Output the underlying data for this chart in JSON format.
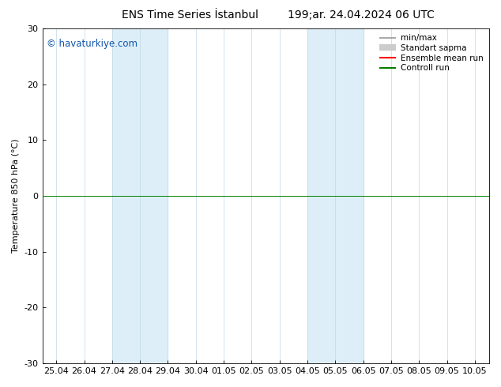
{
  "title_left": "ENS Time Series İstanbul",
  "title_right": "199;ar. 24.04.2024 06 UTC",
  "ylabel": "Temperature 850 hPa (°C)",
  "ylim": [
    -30,
    30
  ],
  "yticks": [
    -30,
    -20,
    -10,
    0,
    10,
    20,
    30
  ],
  "x_labels": [
    "25.04",
    "26.04",
    "27.04",
    "28.04",
    "29.04",
    "30.04",
    "01.05",
    "02.05",
    "03.05",
    "04.05",
    "05.05",
    "06.05",
    "07.05",
    "08.05",
    "09.05",
    "10.05"
  ],
  "shaded_bands": [
    {
      "xmin": 2.0,
      "xmax": 4.0
    },
    {
      "xmin": 9.0,
      "xmax": 11.0
    }
  ],
  "shade_color": "#ddeef8",
  "zero_line_color": "#008000",
  "vertical_line_color": "#c0d8e8",
  "watermark": "© havaturkiye.com",
  "watermark_color": "#1155aa",
  "legend_items": [
    {
      "label": "min/max",
      "color": "#999999",
      "lw": 1.2
    },
    {
      "label": "Standart sapma",
      "color": "#cccccc",
      "lw": 6
    },
    {
      "label": "Ensemble mean run",
      "color": "#ff0000",
      "lw": 1.5
    },
    {
      "label": "Controll run",
      "color": "#008000",
      "lw": 1.5
    }
  ],
  "bg_color": "#ffffff",
  "title_fontsize": 10,
  "tick_fontsize": 8,
  "ylabel_fontsize": 8,
  "watermark_fontsize": 8.5,
  "legend_fontsize": 7.5
}
